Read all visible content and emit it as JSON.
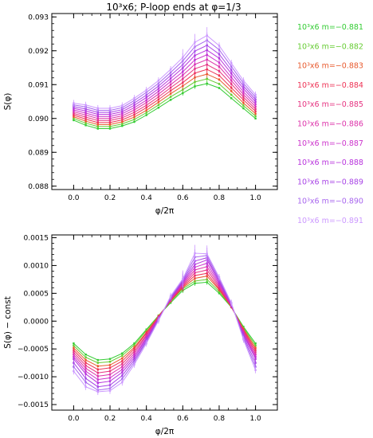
{
  "title": "10³x6;  P-loop ends at φ=1/3",
  "legend": {
    "entries": [
      {
        "label": "10³x6  m=−0.881",
        "color": "#33cc33"
      },
      {
        "label": "10³x6  m=−0.882",
        "color": "#66cc33"
      },
      {
        "label": "10³x6  m=−0.883",
        "color": "#e85a2e"
      },
      {
        "label": "10³x6  m=−0.884",
        "color": "#ee3355"
      },
      {
        "label": "10³x6  m=−0.885",
        "color": "#e63380"
      },
      {
        "label": "10³x6  m=−0.886",
        "color": "#dd33aa"
      },
      {
        "label": "10³x6  m=−0.887",
        "color": "#cc33cc"
      },
      {
        "label": "10³x6  m=−0.888",
        "color": "#b833dd"
      },
      {
        "label": "10³x6  m=−0.889",
        "color": "#a844e6"
      },
      {
        "label": "10³x6  m=−0.890",
        "color": "#a866ee"
      },
      {
        "label": "10³x6  m=−0.891",
        "color": "#cc99ff"
      }
    ]
  },
  "chart_data": [
    {
      "type": "line",
      "title": "10³x6;  P-loop ends at φ=1/3",
      "xlabel": "φ/2π",
      "ylabel": "S(φ)",
      "xlim": [
        -0.12,
        1.12
      ],
      "ylim": [
        0.0879,
        0.0931
      ],
      "xticks": [
        0.0,
        0.2,
        0.4,
        0.6,
        0.8,
        1.0
      ],
      "xtick_labels": [
        "0.0",
        "0.2",
        "0.4",
        "0.6",
        "0.8",
        "1.0"
      ],
      "yticks": [
        0.088,
        0.089,
        0.09,
        0.091,
        0.092,
        0.093
      ],
      "ytick_labels": [
        "0.088",
        "0.089",
        "0.090",
        "0.091",
        "0.092",
        "0.093"
      ],
      "x": [
        0.0,
        0.0667,
        0.1333,
        0.2,
        0.2667,
        0.3333,
        0.4,
        0.4667,
        0.5333,
        0.6,
        0.6667,
        0.7333,
        0.8,
        0.8667,
        0.9333,
        1.0
      ],
      "series": [
        {
          "name": "10³x6  m=−0.881",
          "values": [
            0.08995,
            0.0898,
            0.0897,
            0.0897,
            0.08978,
            0.0899,
            0.0901,
            0.09032,
            0.09055,
            0.09075,
            0.09095,
            0.09103,
            0.0909,
            0.0906,
            0.0903,
            0.09
          ]
        },
        {
          "name": "10³x6  m=−0.882",
          "values": [
            0.09,
            0.08986,
            0.08976,
            0.08976,
            0.08984,
            0.08997,
            0.09017,
            0.0904,
            0.09064,
            0.09085,
            0.09108,
            0.09117,
            0.09102,
            0.0907,
            0.09038,
            0.09007
          ]
        },
        {
          "name": "10³x6  m=−0.883",
          "values": [
            0.09005,
            0.08992,
            0.08982,
            0.08982,
            0.0899,
            0.09004,
            0.09024,
            0.09048,
            0.09073,
            0.09096,
            0.09121,
            0.09131,
            0.09115,
            0.09081,
            0.09046,
            0.09014
          ]
        },
        {
          "name": "10³x6  m=−0.884",
          "values": [
            0.0901,
            0.08998,
            0.08988,
            0.08988,
            0.08996,
            0.09011,
            0.09032,
            0.09056,
            0.09082,
            0.09106,
            0.09134,
            0.09145,
            0.09127,
            0.09091,
            0.09055,
            0.09021
          ]
        },
        {
          "name": "10³x6  m=−0.885",
          "values": [
            0.09015,
            0.09004,
            0.08994,
            0.08994,
            0.09002,
            0.09018,
            0.09039,
            0.09064,
            0.09091,
            0.09117,
            0.09147,
            0.09159,
            0.0914,
            0.09102,
            0.09063,
            0.09028
          ]
        },
        {
          "name": "10³x6  m=−0.886",
          "values": [
            0.0902,
            0.0901,
            0.09,
            0.09,
            0.09008,
            0.09025,
            0.09047,
            0.09072,
            0.091,
            0.09128,
            0.0916,
            0.09174,
            0.09153,
            0.09112,
            0.09071,
            0.09035
          ]
        },
        {
          "name": "10³x6  m=−0.887",
          "values": [
            0.09025,
            0.09016,
            0.09006,
            0.09006,
            0.09014,
            0.09032,
            0.09054,
            0.0908,
            0.09109,
            0.09138,
            0.09173,
            0.09188,
            0.09165,
            0.09122,
            0.09079,
            0.09042
          ]
        },
        {
          "name": "10³x6  m=−0.888",
          "values": [
            0.0903,
            0.09022,
            0.09012,
            0.09012,
            0.0902,
            0.09039,
            0.09062,
            0.09088,
            0.09118,
            0.09149,
            0.09186,
            0.09202,
            0.09178,
            0.09133,
            0.09088,
            0.09049
          ]
        },
        {
          "name": "10³x6  m=−0.889",
          "values": [
            0.09035,
            0.09028,
            0.09018,
            0.09018,
            0.09026,
            0.09046,
            0.09069,
            0.09096,
            0.09127,
            0.09159,
            0.09199,
            0.09216,
            0.0919,
            0.09143,
            0.09096,
            0.09056
          ]
        },
        {
          "name": "10³x6  m=−0.890",
          "values": [
            0.0904,
            0.09034,
            0.09024,
            0.09024,
            0.09032,
            0.09053,
            0.09077,
            0.09104,
            0.09136,
            0.0917,
            0.09212,
            0.09231,
            0.09203,
            0.09154,
            0.09104,
            0.09063
          ]
        },
        {
          "name": "10³x6  m=−0.891",
          "values": [
            0.09045,
            0.0904,
            0.0903,
            0.0903,
            0.09038,
            0.0906,
            0.09084,
            0.09112,
            0.09145,
            0.0918,
            0.09225,
            0.09245,
            0.09215,
            0.09164,
            0.09112,
            0.0907
          ]
        }
      ]
    },
    {
      "type": "line",
      "xlabel": "φ/2π",
      "ylabel": "S(φ) − const",
      "xlim": [
        -0.12,
        1.12
      ],
      "ylim": [
        -0.0016,
        0.00155
      ],
      "xticks": [
        0.0,
        0.2,
        0.4,
        0.6,
        0.8,
        1.0
      ],
      "xtick_labels": [
        "0.0",
        "0.2",
        "0.4",
        "0.6",
        "0.8",
        "1.0"
      ],
      "yticks": [
        -0.0015,
        -0.001,
        -0.0005,
        0.0,
        0.0005,
        0.001,
        0.0015
      ],
      "ytick_labels": [
        "−0.0015",
        "−0.0010",
        "−0.0005",
        "0.0000",
        "0.0005",
        "0.0010",
        "0.0015"
      ],
      "x": [
        0.0,
        0.0667,
        0.1333,
        0.2,
        0.2667,
        0.3333,
        0.4,
        0.4667,
        0.5333,
        0.6,
        0.6667,
        0.7333,
        0.8,
        0.8667,
        0.9333,
        1.0
      ],
      "series": [
        {
          "name": "10³x6  m=−0.881",
          "values": [
            -0.0004,
            -0.0006,
            -0.0007,
            -0.00068,
            -0.00058,
            -0.0004,
            -0.00015,
            0.0001,
            0.00033,
            0.00055,
            0.00068,
            0.0007,
            0.0005,
            0.00025,
            -0.0001,
            -0.0004
          ]
        },
        {
          "name": "10³x6  m=−0.882",
          "values": [
            -0.00044,
            -0.00065,
            -0.00075,
            -0.00073,
            -0.00062,
            -0.00043,
            -0.00017,
            0.0001,
            0.00035,
            0.00058,
            0.00072,
            0.00075,
            0.00053,
            0.00025,
            -0.00012,
            -0.00044
          ]
        },
        {
          "name": "10³x6  m=−0.883",
          "values": [
            -0.00048,
            -0.0007,
            -0.00081,
            -0.00079,
            -0.00067,
            -0.00047,
            -0.0002,
            9e-05,
            0.00036,
            0.0006,
            0.00077,
            0.00081,
            0.00056,
            0.00026,
            -0.00014,
            -0.00048
          ]
        },
        {
          "name": "10³x6  m=−0.884",
          "values": [
            -0.00052,
            -0.00075,
            -0.00087,
            -0.00084,
            -0.00072,
            -0.0005,
            -0.00022,
            8e-05,
            0.00037,
            0.00062,
            0.00082,
            0.00086,
            0.00058,
            0.00026,
            -0.00016,
            -0.00052
          ]
        },
        {
          "name": "10³x6  m=−0.885",
          "values": [
            -0.00056,
            -0.0008,
            -0.00093,
            -0.0009,
            -0.00077,
            -0.00054,
            -0.00025,
            7e-05,
            0.00038,
            0.00064,
            0.00087,
            0.00092,
            0.00061,
            0.00027,
            -0.00018,
            -0.00056
          ]
        },
        {
          "name": "10³x6  m=−0.886",
          "values": [
            -0.0006,
            -0.00085,
            -0.00099,
            -0.00096,
            -0.00082,
            -0.00058,
            -0.00027,
            6e-05,
            0.00039,
            0.00066,
            0.00092,
            0.00098,
            0.00064,
            0.00028,
            -0.0002,
            -0.0006
          ]
        },
        {
          "name": "10³x6  m=−0.887",
          "values": [
            -0.00064,
            -0.0009,
            -0.00105,
            -0.00102,
            -0.00087,
            -0.00062,
            -0.0003,
            5e-05,
            0.0004,
            0.00068,
            0.00097,
            0.00104,
            0.00067,
            0.00029,
            -0.00022,
            -0.00064
          ]
        },
        {
          "name": "10³x6  m=−0.888",
          "values": [
            -0.00068,
            -0.00095,
            -0.00111,
            -0.00108,
            -0.00092,
            -0.00066,
            -0.00032,
            4e-05,
            0.00041,
            0.0007,
            0.00102,
            0.0011,
            0.0007,
            0.0003,
            -0.00024,
            -0.00068
          ]
        },
        {
          "name": "10³x6  m=−0.889",
          "values": [
            -0.00075,
            -0.00103,
            -0.00118,
            -0.00115,
            -0.00098,
            -0.0007,
            -0.00035,
            3e-05,
            0.00042,
            0.00072,
            0.00108,
            0.00114,
            0.00073,
            0.00031,
            -0.00027,
            -0.00075
          ]
        },
        {
          "name": "10³x6  m=−0.890",
          "values": [
            -0.00082,
            -0.0011,
            -0.00124,
            -0.00121,
            -0.00104,
            -0.00074,
            -0.00037,
            2e-05,
            0.00043,
            0.00074,
            0.00115,
            0.00118,
            0.00076,
            0.00032,
            -0.0003,
            -0.00082
          ]
        },
        {
          "name": "10³x6  m=−0.891",
          "values": [
            -0.0009,
            -0.00118,
            -0.00127,
            -0.00125,
            -0.0011,
            -0.00078,
            -0.0004,
            1e-05,
            0.00045,
            0.00076,
            0.00122,
            0.00121,
            0.00079,
            0.00033,
            -0.00033,
            -0.00088
          ]
        }
      ]
    }
  ]
}
